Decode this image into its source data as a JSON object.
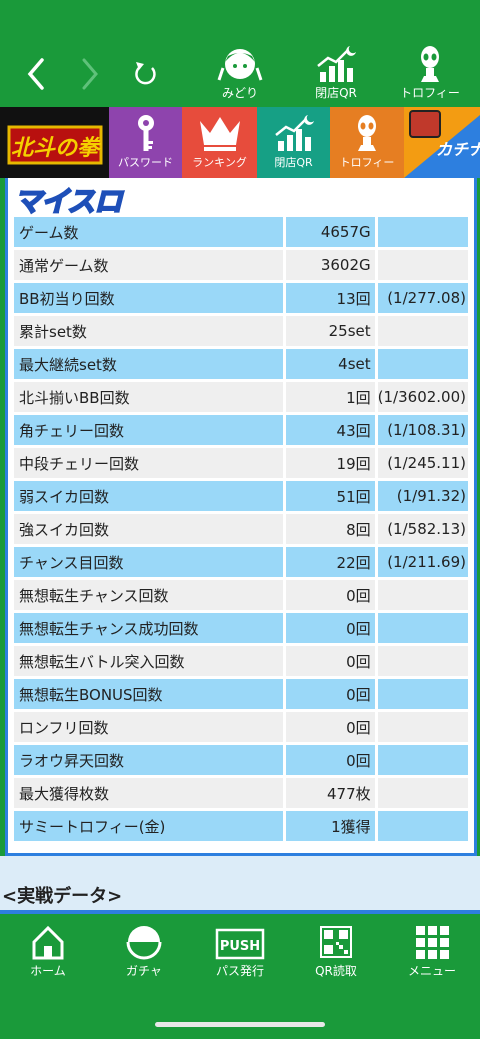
{
  "top_nav": {
    "buttons": [
      {
        "label": "みどり",
        "icon": "character-icon"
      },
      {
        "label": "閉店QR",
        "icon": "closing-chart-icon"
      },
      {
        "label": "トロフィー",
        "icon": "trophy-alien-icon"
      }
    ]
  },
  "menu": {
    "items": [
      {
        "label": "",
        "icon": "hokuto-logo",
        "logo_text": "北斗の拳",
        "color": "#111111"
      },
      {
        "label": "パスワード",
        "icon": "key-icon",
        "color": "#8e44ad"
      },
      {
        "label": "ランキング",
        "icon": "crown-icon",
        "color": "#e74c3c"
      },
      {
        "label": "閉店QR",
        "icon": "closing-chart-icon",
        "color": "#16a085"
      },
      {
        "label": "トロフィー",
        "icon": "trophy-alien-icon",
        "color": "#e67e22"
      },
      {
        "label": "",
        "icon": "kachinavi-logo",
        "logo_text": "カチナビ",
        "color": "#2d7fdf"
      }
    ]
  },
  "panel": {
    "logo": "マイスロ",
    "rows": [
      {
        "label": "ゲーム数",
        "value": "4657G",
        "prob": ""
      },
      {
        "label": "通常ゲーム数",
        "value": "3602G",
        "prob": ""
      },
      {
        "label": "BB初当り回数",
        "value": "13回",
        "prob": "(1/277.08)"
      },
      {
        "label": "累計set数",
        "value": "25set",
        "prob": ""
      },
      {
        "label": "最大継続set数",
        "value": "4set",
        "prob": ""
      },
      {
        "label": "北斗揃いBB回数",
        "value": "1回",
        "prob": "(1/3602.00)"
      },
      {
        "label": "角チェリー回数",
        "value": "43回",
        "prob": "(1/108.31)"
      },
      {
        "label": "中段チェリー回数",
        "value": "19回",
        "prob": "(1/245.11)"
      },
      {
        "label": "弱スイカ回数",
        "value": "51回",
        "prob": "(1/91.32)"
      },
      {
        "label": "強スイカ回数",
        "value": "8回",
        "prob": "(1/582.13)"
      },
      {
        "label": "チャンス目回数",
        "value": "22回",
        "prob": "(1/211.69)"
      },
      {
        "label": "無想転生チャンス回数",
        "value": "0回",
        "prob": ""
      },
      {
        "label": "無想転生チャンス成功回数",
        "value": "0回",
        "prob": ""
      },
      {
        "label": "無想転生バトル突入回数",
        "value": "0回",
        "prob": ""
      },
      {
        "label": "無想転生BONUS回数",
        "value": "0回",
        "prob": ""
      },
      {
        "label": "ロンフリ回数",
        "value": "0回",
        "prob": ""
      },
      {
        "label": "ラオウ昇天回数",
        "value": "0回",
        "prob": ""
      },
      {
        "label": "最大獲得枚数",
        "value": "477枚",
        "prob": ""
      },
      {
        "label": "サミートロフィー(金)",
        "value": "1獲得",
        "prob": ""
      }
    ]
  },
  "section": {
    "title": "<実戦データ>"
  },
  "bottom_nav": {
    "buttons": [
      {
        "label": "ホーム",
        "icon": "home-icon"
      },
      {
        "label": "ガチャ",
        "icon": "gacha-icon"
      },
      {
        "label": "パス発行",
        "icon": "push-icon",
        "icon_text": "PUSH"
      },
      {
        "label": "QR読取",
        "icon": "qr-icon"
      },
      {
        "label": "メニュー",
        "icon": "menu-grid-icon"
      }
    ]
  }
}
